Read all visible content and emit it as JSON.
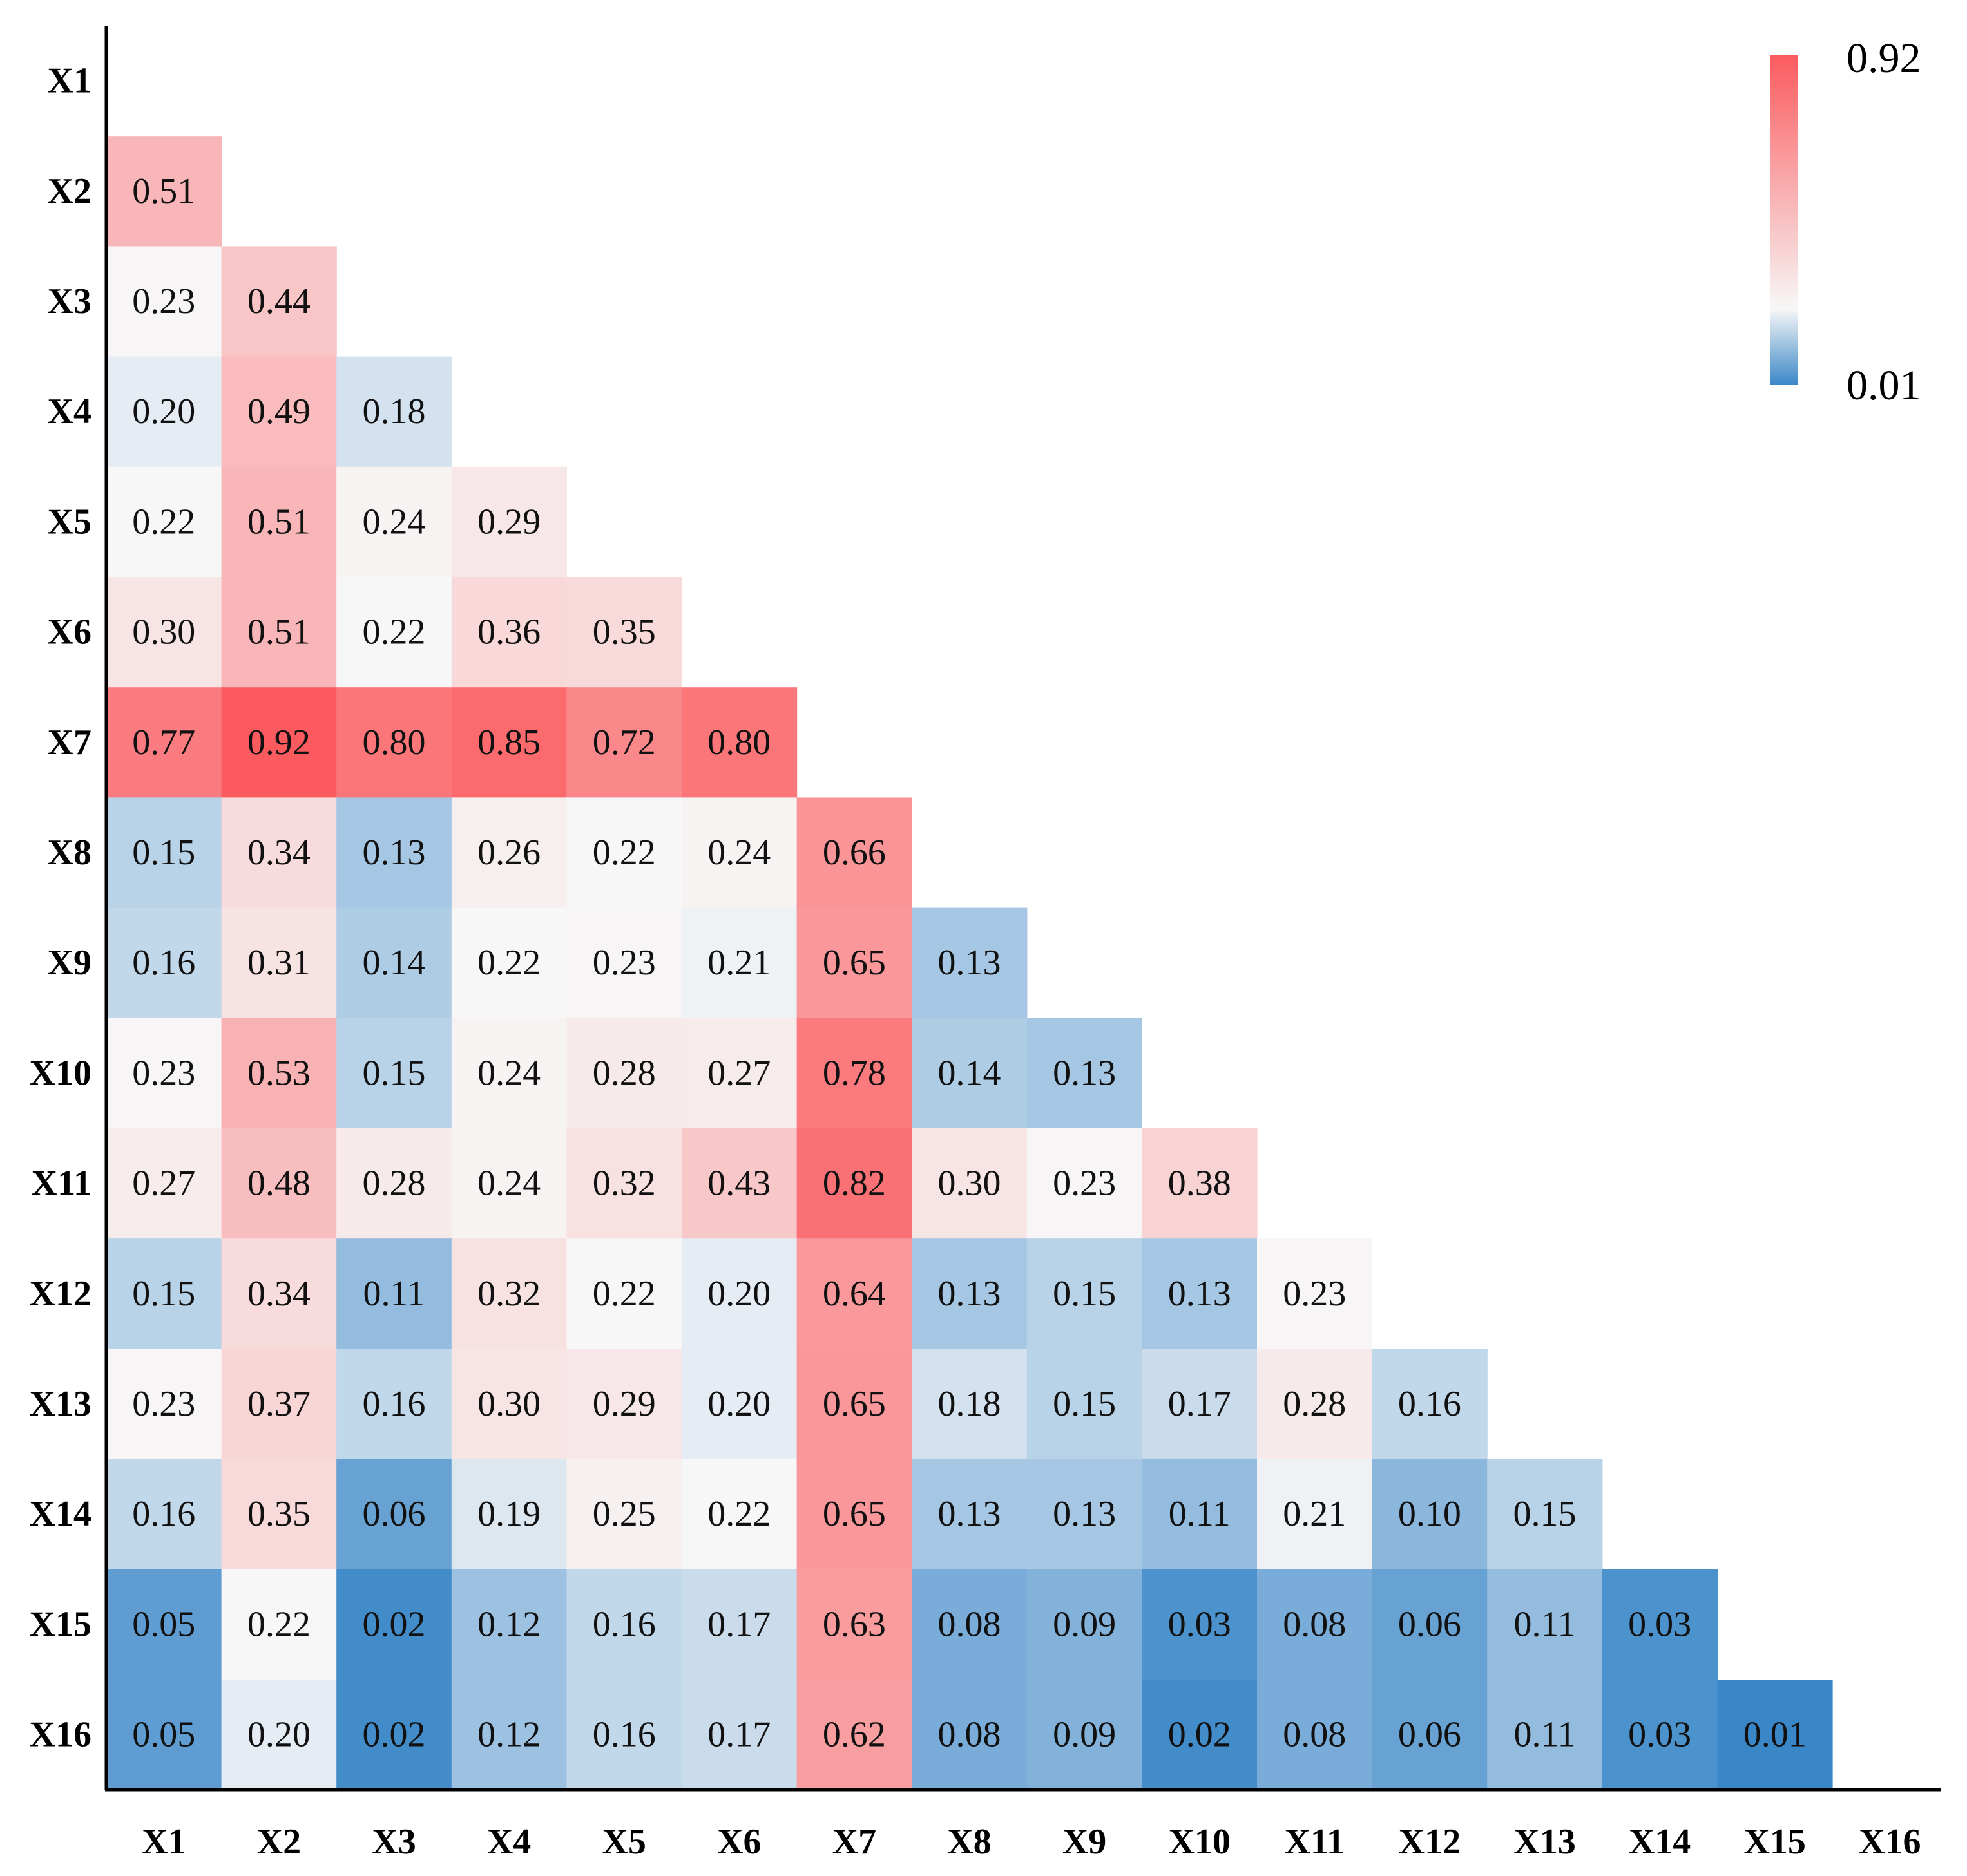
{
  "chart_data": {
    "type": "heatmap",
    "title": "",
    "variables": [
      "X1",
      "X2",
      "X3",
      "X4",
      "X5",
      "X6",
      "X7",
      "X8",
      "X9",
      "X10",
      "X11",
      "X12",
      "X13",
      "X14",
      "X15",
      "X16"
    ],
    "layout": "lower-triangle",
    "rows": [
      {
        "label": "X1",
        "values": []
      },
      {
        "label": "X2",
        "values": [
          "0.51"
        ]
      },
      {
        "label": "X3",
        "values": [
          "0.23",
          "0.44"
        ]
      },
      {
        "label": "X4",
        "values": [
          "0.20",
          "0.49",
          "0.18"
        ]
      },
      {
        "label": "X5",
        "values": [
          "0.22",
          "0.51",
          "0.24",
          "0.29"
        ]
      },
      {
        "label": "X6",
        "values": [
          "0.30",
          "0.51",
          "0.22",
          "0.36",
          "0.35"
        ]
      },
      {
        "label": "X7",
        "values": [
          "0.77",
          "0.92",
          "0.80",
          "0.85",
          "0.72",
          "0.80"
        ]
      },
      {
        "label": "X8",
        "values": [
          "0.15",
          "0.34",
          "0.13",
          "0.26",
          "0.22",
          "0.24",
          "0.66"
        ]
      },
      {
        "label": "X9",
        "values": [
          "0.16",
          "0.31",
          "0.14",
          "0.22",
          "0.23",
          "0.21",
          "0.65",
          "0.13"
        ]
      },
      {
        "label": "X10",
        "values": [
          "0.23",
          "0.53",
          "0.15",
          "0.24",
          "0.28",
          "0.27",
          "0.78",
          "0.14",
          "0.13"
        ]
      },
      {
        "label": "X11",
        "values": [
          "0.27",
          "0.48",
          "0.28",
          "0.24",
          "0.32",
          "0.43",
          "0.82",
          "0.30",
          "0.23",
          "0.38"
        ]
      },
      {
        "label": "X12",
        "values": [
          "0.15",
          "0.34",
          "0.11",
          "0.32",
          "0.22",
          "0.20",
          "0.64",
          "0.13",
          "0.15",
          "0.13",
          "0.23"
        ]
      },
      {
        "label": "X13",
        "values": [
          "0.23",
          "0.37",
          "0.16",
          "0.30",
          "0.29",
          "0.20",
          "0.65",
          "0.18",
          "0.15",
          "0.17",
          "0.28",
          "0.16"
        ]
      },
      {
        "label": "X14",
        "values": [
          "0.16",
          "0.35",
          "0.06",
          "0.19",
          "0.25",
          "0.22",
          "0.65",
          "0.13",
          "0.13",
          "0.11",
          "0.21",
          "0.10",
          "0.15"
        ]
      },
      {
        "label": "X15",
        "values": [
          "0.05",
          "0.22",
          "0.02",
          "0.12",
          "0.16",
          "0.17",
          "0.63",
          "0.08",
          "0.09",
          "0.03",
          "0.08",
          "0.06",
          "0.11",
          "0.03"
        ]
      },
      {
        "label": "X16",
        "values": [
          "0.05",
          "0.20",
          "0.02",
          "0.12",
          "0.16",
          "0.17",
          "0.62",
          "0.08",
          "0.09",
          "0.02",
          "0.08",
          "0.06",
          "0.11",
          "0.03",
          "0.01"
        ]
      }
    ],
    "colorbar": {
      "min": 0.01,
      "max": 0.92,
      "min_label": "0.01",
      "max_label": "0.92",
      "low_color": "#3a87c8",
      "mid_color": "#f7f7f7",
      "high_color": "#fb5b5f",
      "mid_value": 0.22,
      "position": "top-right"
    }
  }
}
